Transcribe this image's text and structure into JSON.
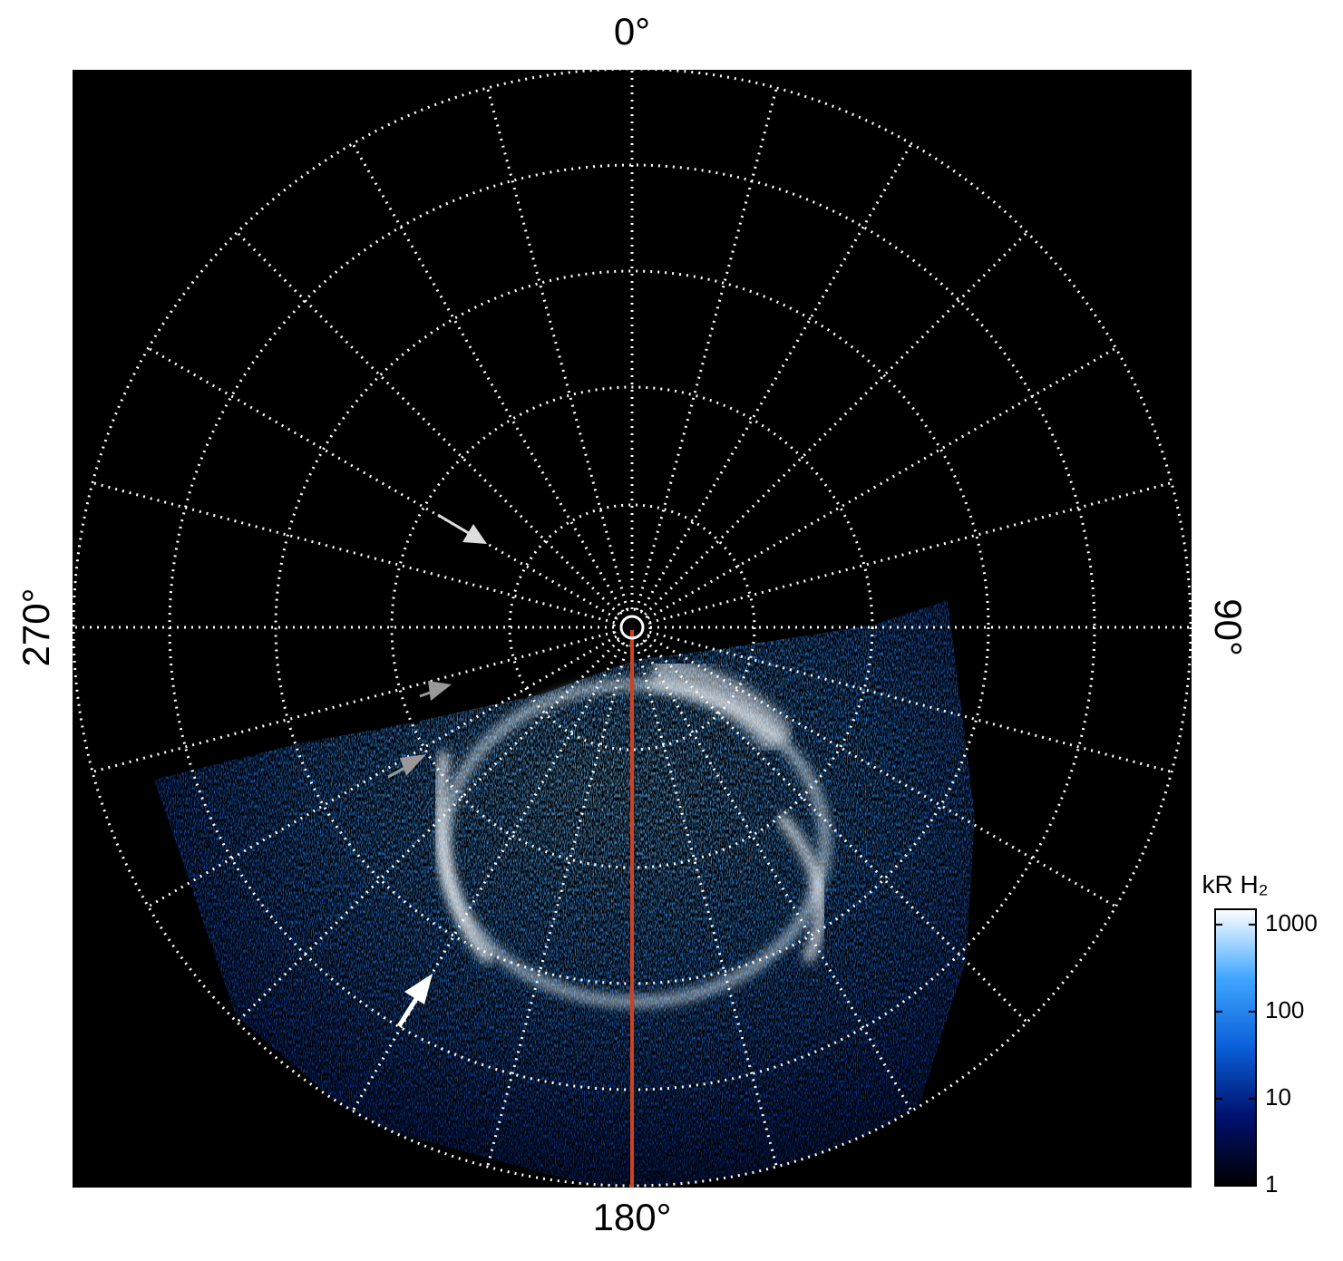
{
  "chart_data": {
    "type": "polar-image",
    "angle_labels": [
      {
        "value": 0,
        "label": "0°"
      },
      {
        "value": 90,
        "label": "90°"
      },
      {
        "value": 180,
        "label": "180°"
      },
      {
        "value": 270,
        "label": "270°"
      }
    ],
    "direction": "clockwise",
    "grid": true,
    "colorbar": {
      "title": "kR H₂",
      "scale": "log",
      "lim": [
        1,
        1500
      ],
      "ticks": [
        1,
        10,
        100,
        1000
      ],
      "colormap": [
        "#000000",
        "#00106e",
        "#0a5fd8",
        "#3fa6ff",
        "#ffffff"
      ]
    }
  }
}
